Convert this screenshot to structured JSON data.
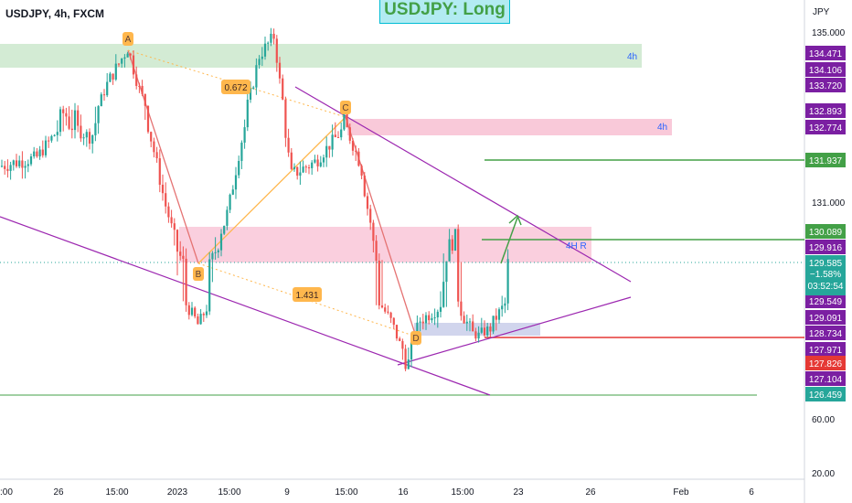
{
  "header": {
    "symbol": "USDJPY, 4h, FXCM",
    "idea_title": "USDJPY: Long",
    "currency": "JPY"
  },
  "colors": {
    "bull": "#26a69a",
    "bear": "#ef5350",
    "purple_line": "#9c27b0",
    "green_line": "#43a047",
    "red_line": "#e53935",
    "badge_purple": "#7b1fa2",
    "badge_green": "#43a047",
    "badge_red": "#e53935",
    "badge_teal": "#26a69a",
    "pattern_label": "#ffb74d",
    "zone_green": "#c8e6c9",
    "zone_red": "#f8bbd0",
    "zone_blue": "#c5cae9"
  },
  "chart_data": {
    "type": "candlestick",
    "title": "USDJPY: Long",
    "instrument": "USDJPY",
    "timeframe": "4h",
    "source": "FXCM",
    "y_axis": {
      "scale": "log",
      "plain_ticks": [
        "135.000",
        "131.000",
        "60.00",
        "20.00"
      ],
      "plain_ticks_values": [
        135.0,
        131.0,
        60.0,
        20.0
      ]
    },
    "x_axis": {
      "ticks": [
        ":00",
        "26",
        "15:00",
        "2023",
        "15:00",
        "9",
        "15:00",
        "16",
        "15:00",
        "23",
        "26",
        "Feb",
        "6"
      ]
    },
    "current_price": {
      "value": "129.585",
      "change": "−1.58%",
      "countdown": "03:52:54"
    },
    "price_badges": [
      {
        "label": "134.471",
        "kind": "purple"
      },
      {
        "label": "134.106",
        "kind": "purple"
      },
      {
        "label": "133.720",
        "kind": "purple"
      },
      {
        "label": "132.893",
        "kind": "purple"
      },
      {
        "label": "132.774",
        "kind": "purple"
      },
      {
        "label": "131.937",
        "kind": "green"
      },
      {
        "label": "130.089",
        "kind": "green"
      },
      {
        "label": "129.916",
        "kind": "purple"
      },
      {
        "label": "129.549",
        "kind": "purple"
      },
      {
        "label": "129.091",
        "kind": "purple"
      },
      {
        "label": "128.734",
        "kind": "purple"
      },
      {
        "label": "127.971",
        "kind": "purple"
      },
      {
        "label": "127.826",
        "kind": "red"
      },
      {
        "label": "127.104",
        "kind": "purple"
      },
      {
        "label": "126.459",
        "kind": "teal"
      }
    ],
    "abcd_pattern": {
      "points": [
        "A",
        "B",
        "C",
        "D"
      ],
      "ratios": [
        "0.672",
        "1.431"
      ]
    },
    "zone_labels": [
      "4h",
      "4h",
      "4H R"
    ]
  }
}
